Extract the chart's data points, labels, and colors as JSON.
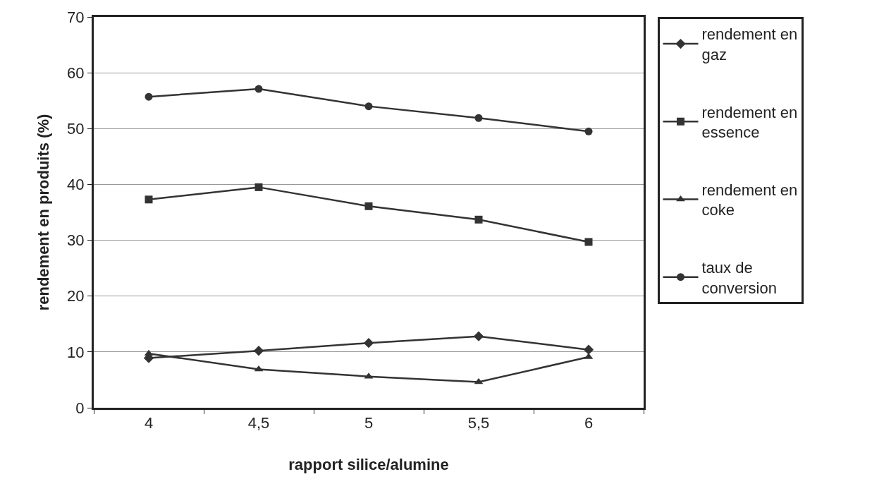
{
  "chart_data": {
    "type": "line",
    "xlabel": "rapport silice/alumine",
    "ylabel": "rendement en produits (%)",
    "categories": [
      "4",
      "4,5",
      "5",
      "5,5",
      "6"
    ],
    "series": [
      {
        "name": "rendement en gaz",
        "color": "#333333",
        "marker": "diamond",
        "values": [
          8.9,
          10.2,
          11.6,
          12.8,
          10.4
        ]
      },
      {
        "name": "rendement en essence",
        "color": "#333333",
        "marker": "square",
        "values": [
          37.3,
          39.5,
          36.1,
          33.7,
          29.7
        ]
      },
      {
        "name": "rendement en coke",
        "color": "#333333",
        "marker": "triangle",
        "values": [
          9.7,
          6.9,
          5.6,
          4.6,
          9.1
        ]
      },
      {
        "name": "taux de conversion",
        "color": "#333333",
        "marker": "circle",
        "values": [
          55.7,
          57.1,
          54.0,
          51.9,
          49.5
        ]
      }
    ],
    "ylim": [
      0,
      70
    ],
    "yticks": [
      0,
      10,
      20,
      30,
      40,
      50,
      60,
      70
    ],
    "grid": "y",
    "legend": "right",
    "line_style": "solid"
  }
}
